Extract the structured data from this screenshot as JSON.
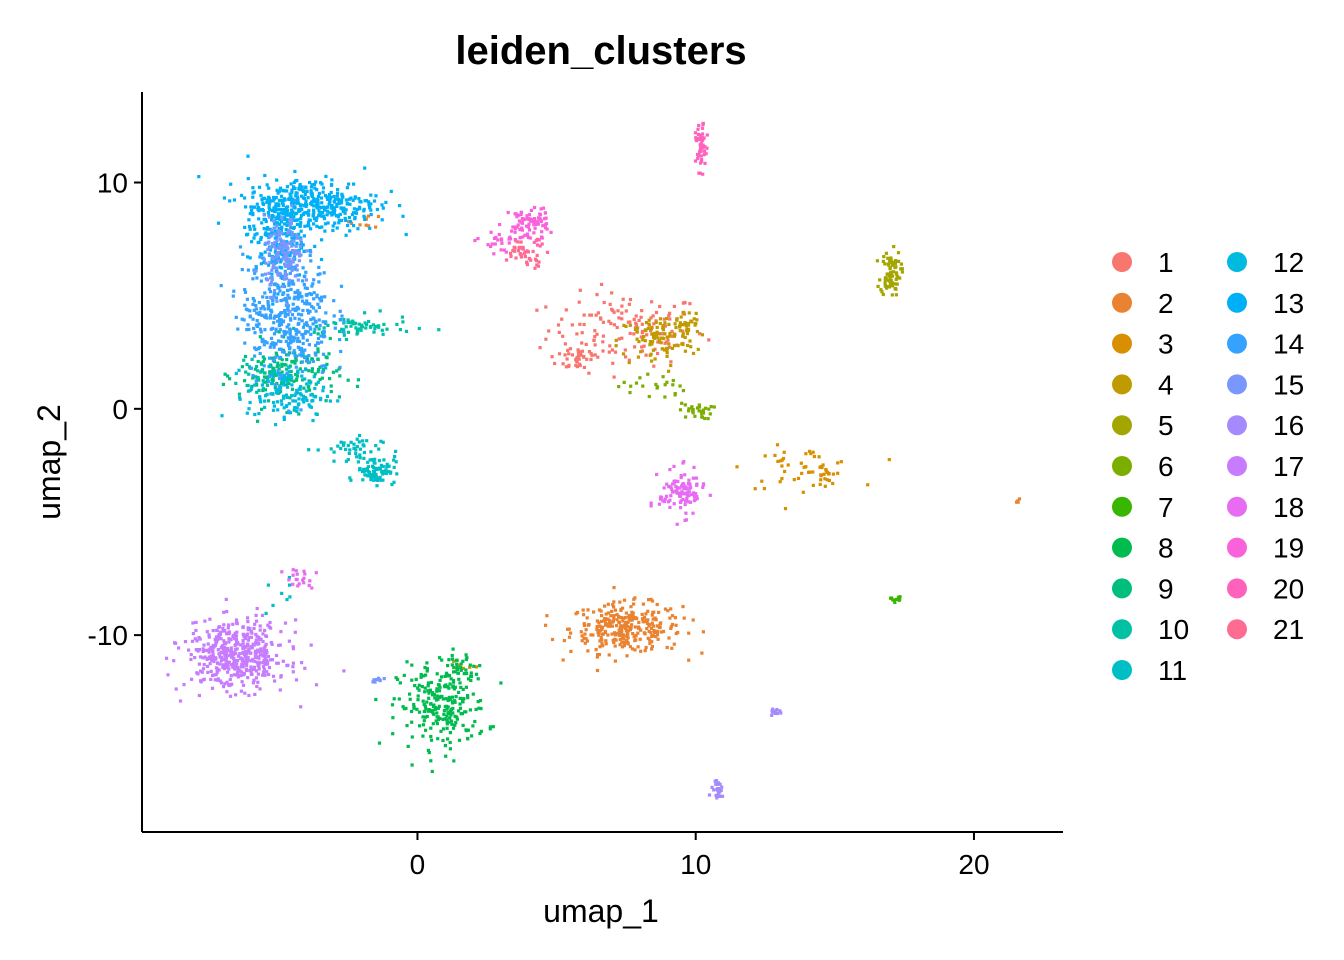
{
  "chart_data": {
    "type": "scatter",
    "title": "leiden_clusters",
    "xlabel": "umap_1",
    "ylabel": "umap_2",
    "xlim": [
      -9.9,
      23.2
    ],
    "ylim": [
      -18.7,
      14.0
    ],
    "x_ticks": [
      0,
      10,
      20
    ],
    "x_tick_labels": [
      "0",
      "10",
      "20"
    ],
    "y_ticks": [
      -10,
      0,
      10
    ],
    "y_tick_labels": [
      "-10",
      "0",
      "10"
    ],
    "grid": false,
    "legend_position": "right",
    "legend_columns": 2,
    "series": [
      {
        "name": "1",
        "color": "#F8766D",
        "clusters": [
          {
            "cx": 7.5,
            "cy": 3.5,
            "sx": 1.4,
            "sy": 0.8,
            "n": 140
          },
          {
            "cx": 5.8,
            "cy": 2.3,
            "sx": 0.4,
            "sy": 0.35,
            "n": 40
          }
        ]
      },
      {
        "name": "2",
        "color": "#EA8331",
        "clusters": [
          {
            "cx": 7.5,
            "cy": -9.7,
            "sx": 1.0,
            "sy": 0.55,
            "n": 300
          },
          {
            "cx": -1.8,
            "cy": 8.3,
            "sx": 0.3,
            "sy": 0.15,
            "n": 10
          },
          {
            "cx": 21.6,
            "cy": -4.1,
            "sx": 0.06,
            "sy": 0.05,
            "n": 4
          }
        ]
      },
      {
        "name": "3",
        "color": "#D89000",
        "clusters": [
          {
            "cx": 13.8,
            "cy": -2.6,
            "sx": 1.0,
            "sy": 0.45,
            "n": 45
          },
          {
            "cx": 14.6,
            "cy": -3.0,
            "sx": 0.15,
            "sy": 0.3,
            "n": 15
          },
          {
            "cx": 1.7,
            "cy": -11.3,
            "sx": 0.25,
            "sy": 0.1,
            "n": 6
          }
        ]
      },
      {
        "name": "4",
        "color": "#C09B00",
        "clusters": [
          {
            "cx": 8.6,
            "cy": 3.0,
            "sx": 0.7,
            "sy": 0.6,
            "n": 90
          },
          {
            "cx": 9.6,
            "cy": 3.7,
            "sx": 0.3,
            "sy": 0.3,
            "n": 40
          }
        ]
      },
      {
        "name": "5",
        "color": "#A3A500",
        "clusters": [
          {
            "cx": 17.0,
            "cy": 6.0,
            "sx": 0.18,
            "sy": 0.5,
            "n": 80
          }
        ]
      },
      {
        "name": "6",
        "color": "#7CAE00",
        "clusters": [
          {
            "cx": 10.0,
            "cy": -0.1,
            "sx": 0.3,
            "sy": 0.18,
            "n": 30
          },
          {
            "cx": 8.4,
            "cy": 1.0,
            "sx": 0.6,
            "sy": 0.3,
            "n": 22
          }
        ]
      },
      {
        "name": "7",
        "color": "#39B600",
        "clusters": [
          {
            "cx": 17.2,
            "cy": -8.4,
            "sx": 0.1,
            "sy": 0.07,
            "n": 10
          }
        ]
      },
      {
        "name": "8",
        "color": "#00BB4E",
        "clusters": [
          {
            "cx": 0.9,
            "cy": -13.2,
            "sx": 0.8,
            "sy": 0.9,
            "n": 240
          },
          {
            "cx": 1.4,
            "cy": -11.5,
            "sx": 0.3,
            "sy": 0.4,
            "n": 40
          }
        ]
      },
      {
        "name": "9",
        "color": "#00BF7D",
        "clusters": [
          {
            "cx": -4.6,
            "cy": 1.5,
            "sx": 0.9,
            "sy": 0.7,
            "n": 180
          }
        ]
      },
      {
        "name": "10",
        "color": "#00C1A3",
        "clusters": [
          {
            "cx": -2.2,
            "cy": 3.6,
            "sx": 1.0,
            "sy": 0.25,
            "n": 70
          },
          {
            "cx": -5.8,
            "cy": 1.4,
            "sx": 0.3,
            "sy": 0.3,
            "n": 30
          }
        ]
      },
      {
        "name": "11",
        "color": "#00BFC4",
        "clusters": [
          {
            "cx": -1.5,
            "cy": -2.7,
            "sx": 0.35,
            "sy": 0.3,
            "n": 90
          },
          {
            "cx": -2.5,
            "cy": -1.8,
            "sx": 0.6,
            "sy": 0.3,
            "n": 40
          },
          {
            "cx": -5.0,
            "cy": -8.3,
            "sx": 0.3,
            "sy": 0.4,
            "n": 8
          }
        ]
      },
      {
        "name": "12",
        "color": "#00BAE0",
        "clusters": [
          {
            "cx": -4.7,
            "cy": 0.6,
            "sx": 0.7,
            "sy": 0.6,
            "n": 120
          }
        ]
      },
      {
        "name": "13",
        "color": "#00B0F6",
        "clusters": [
          {
            "cx": -3.8,
            "cy": 9.0,
            "sx": 1.2,
            "sy": 0.6,
            "n": 400
          },
          {
            "cx": -5.1,
            "cy": 7.6,
            "sx": 0.5,
            "sy": 1.0,
            "n": 180
          }
        ]
      },
      {
        "name": "14",
        "color": "#35A2FF",
        "clusters": [
          {
            "cx": -4.7,
            "cy": 4.2,
            "sx": 0.8,
            "sy": 1.4,
            "n": 420
          }
        ]
      },
      {
        "name": "15",
        "color": "#7997FF",
        "clusters": [
          {
            "cx": -4.8,
            "cy": 6.8,
            "sx": 0.35,
            "sy": 0.8,
            "n": 150
          },
          {
            "cx": -1.3,
            "cy": -12.0,
            "sx": 0.15,
            "sy": 0.08,
            "n": 8
          }
        ]
      },
      {
        "name": "16",
        "color": "#A58AFF",
        "clusters": [
          {
            "cx": 10.8,
            "cy": -16.9,
            "sx": 0.15,
            "sy": 0.18,
            "n": 25
          },
          {
            "cx": 12.9,
            "cy": -13.4,
            "sx": 0.1,
            "sy": 0.08,
            "n": 12
          }
        ]
      },
      {
        "name": "17",
        "color": "#C77CFF",
        "clusters": [
          {
            "cx": -6.5,
            "cy": -10.9,
            "sx": 0.9,
            "sy": 0.75,
            "n": 480
          }
        ]
      },
      {
        "name": "18",
        "color": "#E76BF3",
        "clusters": [
          {
            "cx": 9.5,
            "cy": -3.7,
            "sx": 0.4,
            "sy": 0.5,
            "n": 110
          },
          {
            "cx": -4.2,
            "cy": -7.5,
            "sx": 0.3,
            "sy": 0.25,
            "n": 20
          }
        ]
      },
      {
        "name": "19",
        "color": "#FA62DB",
        "clusters": [
          {
            "cx": 4.0,
            "cy": 8.2,
            "sx": 0.35,
            "sy": 0.35,
            "n": 80
          },
          {
            "cx": 3.2,
            "cy": 7.4,
            "sx": 0.5,
            "sy": 0.3,
            "n": 30
          }
        ]
      },
      {
        "name": "20",
        "color": "#FF62BC",
        "clusters": [
          {
            "cx": 10.2,
            "cy": 11.5,
            "sx": 0.1,
            "sy": 0.5,
            "n": 50
          }
        ]
      },
      {
        "name": "21",
        "color": "#FF6C91",
        "clusters": [
          {
            "cx": 3.9,
            "cy": 6.9,
            "sx": 0.4,
            "sy": 0.3,
            "n": 45
          }
        ]
      }
    ]
  }
}
